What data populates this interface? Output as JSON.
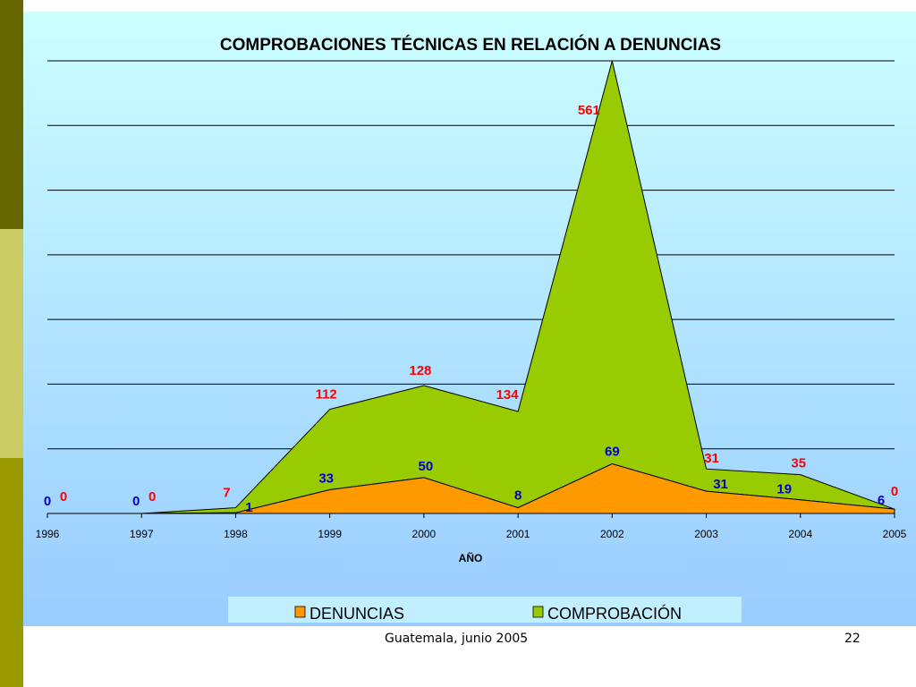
{
  "footer": {
    "text": "Guatemala, junio 2005",
    "page": "22"
  },
  "colors": {
    "denuncias_fill": "#ff9900",
    "comprobacion_fill": "#99cc00",
    "denuncias_label": "#0000cc",
    "comprobacion_label": "#ff0000",
    "stripe_dark": "#666600",
    "stripe_light": "#cccc66",
    "stripe_bottom": "#999900"
  },
  "chart_data": {
    "type": "area",
    "stacked": true,
    "title": "COMPROBACIONES TÉCNICAS EN RELACIÓN A DENUNCIAS",
    "xlabel": "AÑO",
    "ylabel": "",
    "x": [
      "1996",
      "1997",
      "1998",
      "1999",
      "2000",
      "2001",
      "2002",
      "2003",
      "2004",
      "2005"
    ],
    "ylim": [
      0,
      630
    ],
    "grid": true,
    "legend_position": "bottom",
    "series": [
      {
        "name": "DENUNCIAS",
        "values": [
          0,
          0,
          1,
          33,
          50,
          8,
          69,
          31,
          19,
          6
        ]
      },
      {
        "name": "COMPROBACIÓN",
        "values": [
          0,
          0,
          7,
          112,
          128,
          134,
          561,
          31,
          35,
          0
        ]
      }
    ]
  }
}
